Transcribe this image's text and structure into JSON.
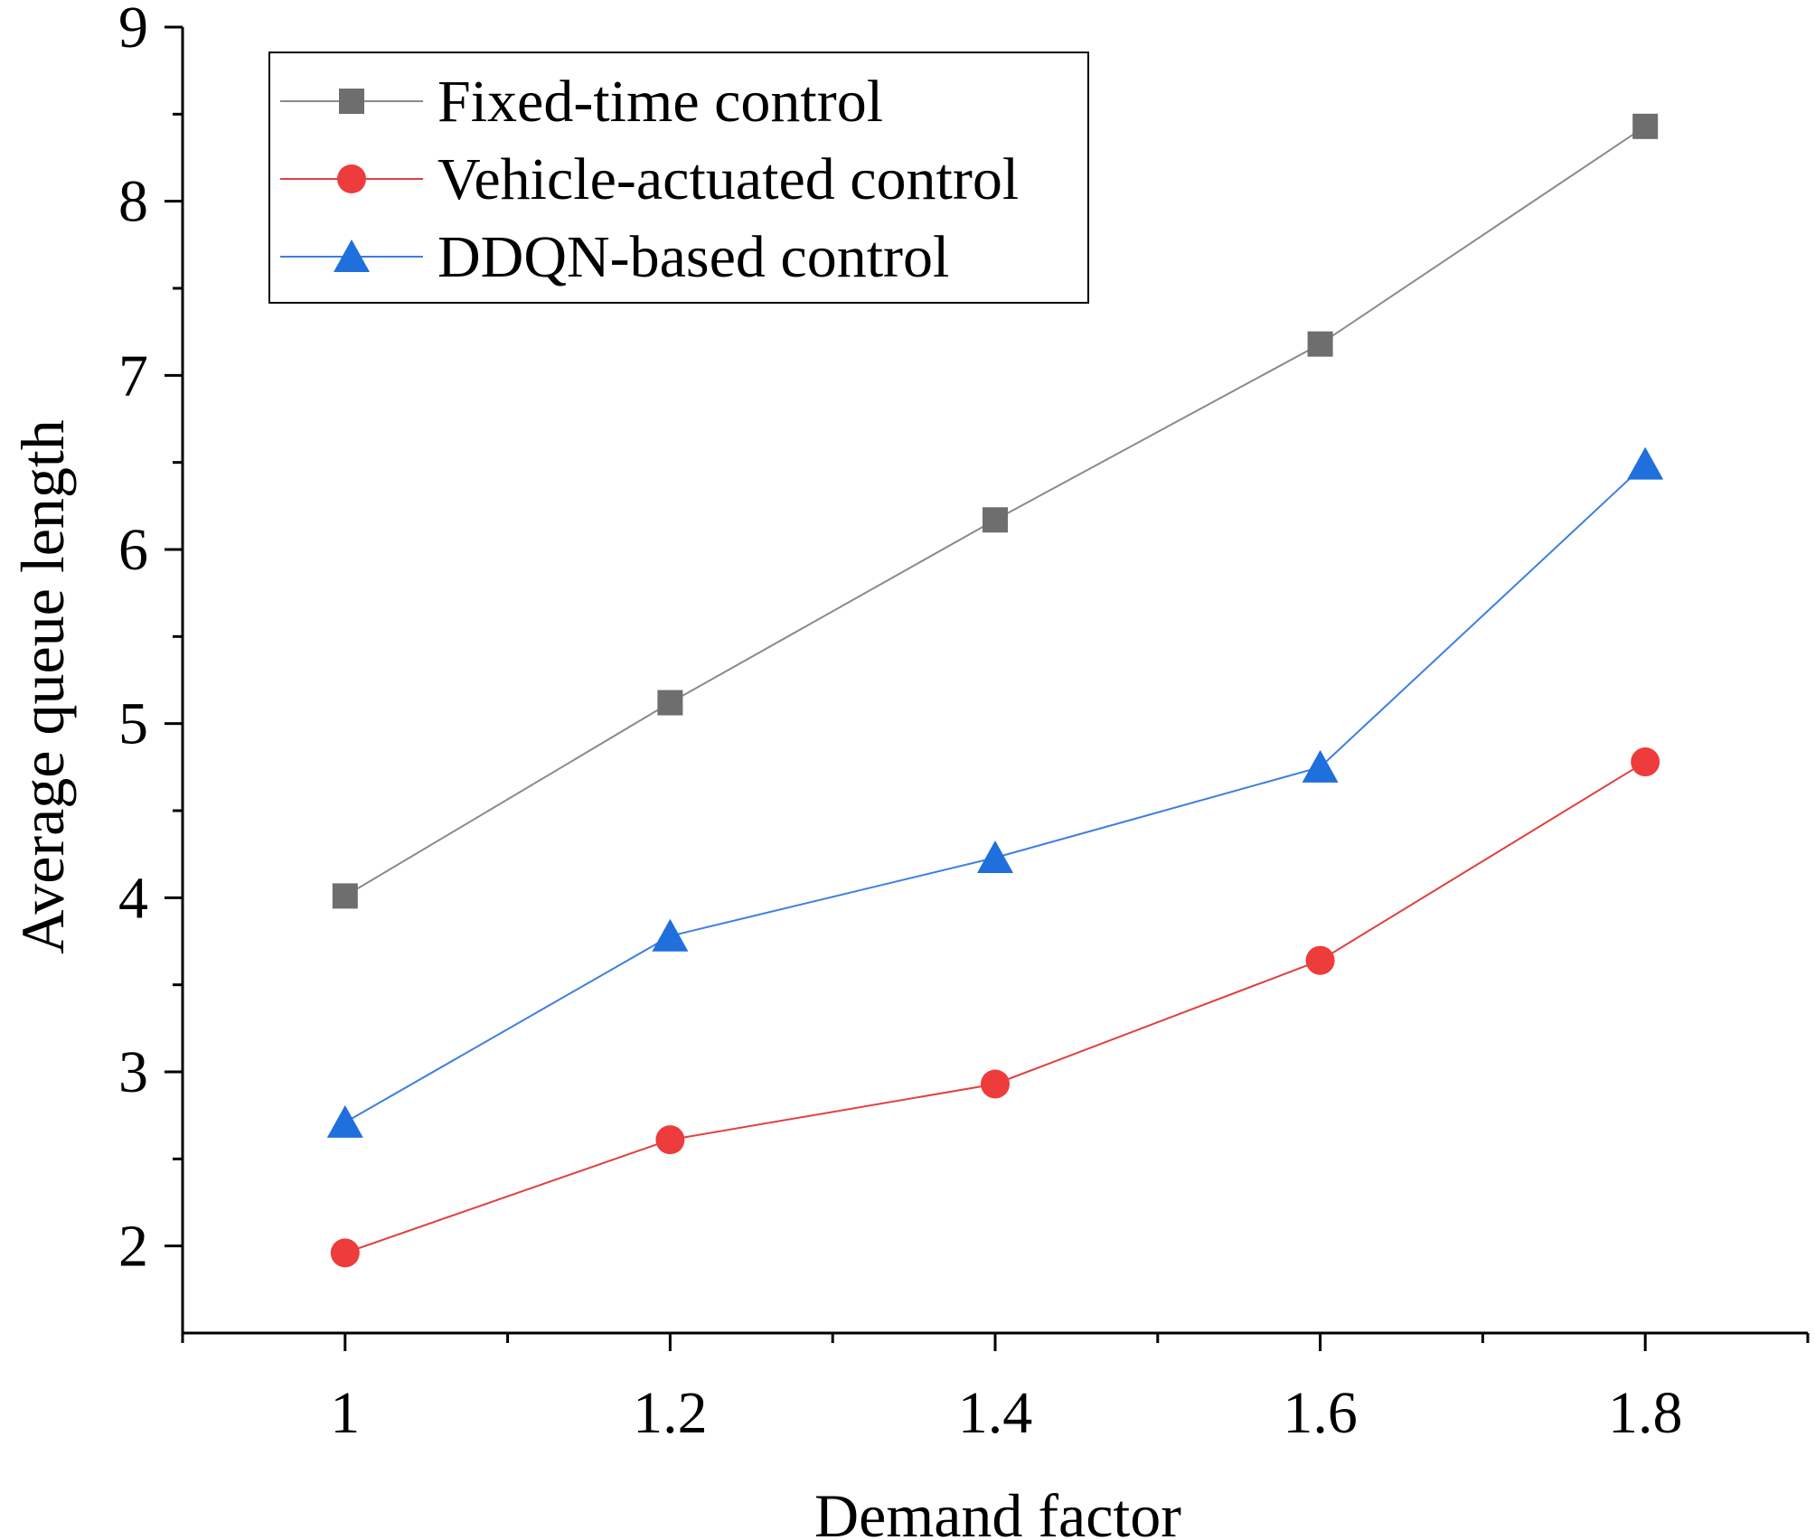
{
  "chart_data": {
    "type": "line",
    "title": "",
    "xlabel": "Demand factor",
    "ylabel": "Average queue length",
    "x": [
      1,
      1.2,
      1.4,
      1.6,
      1.8
    ],
    "x_tick_labels": [
      "1",
      "1.2",
      "1.4",
      "1.6",
      "1.8"
    ],
    "y_tick_labels": [
      "2",
      "3",
      "4",
      "5",
      "6",
      "7",
      "8",
      "9"
    ],
    "xlim": [
      0.9,
      1.9
    ],
    "ylim": [
      1.5,
      9
    ],
    "grid": false,
    "legend_position": "top-left",
    "series": [
      {
        "name": "Fixed-time control",
        "marker": "square",
        "color": "#6e6e6e",
        "line_color": "#8a8a8a",
        "values": [
          4.01,
          5.12,
          6.17,
          7.18,
          8.43
        ]
      },
      {
        "name": "Vehicle-actuated control",
        "marker": "circle",
        "color": "#ee3b3b",
        "line_color": "#e0413f",
        "values": [
          1.96,
          2.61,
          2.93,
          3.64,
          4.78
        ]
      },
      {
        "name": "DDQN-based control",
        "marker": "triangle",
        "color": "#1f6fdc",
        "line_color": "#3d7fe0",
        "values": [
          2.71,
          3.78,
          4.23,
          4.75,
          6.49
        ]
      }
    ]
  }
}
